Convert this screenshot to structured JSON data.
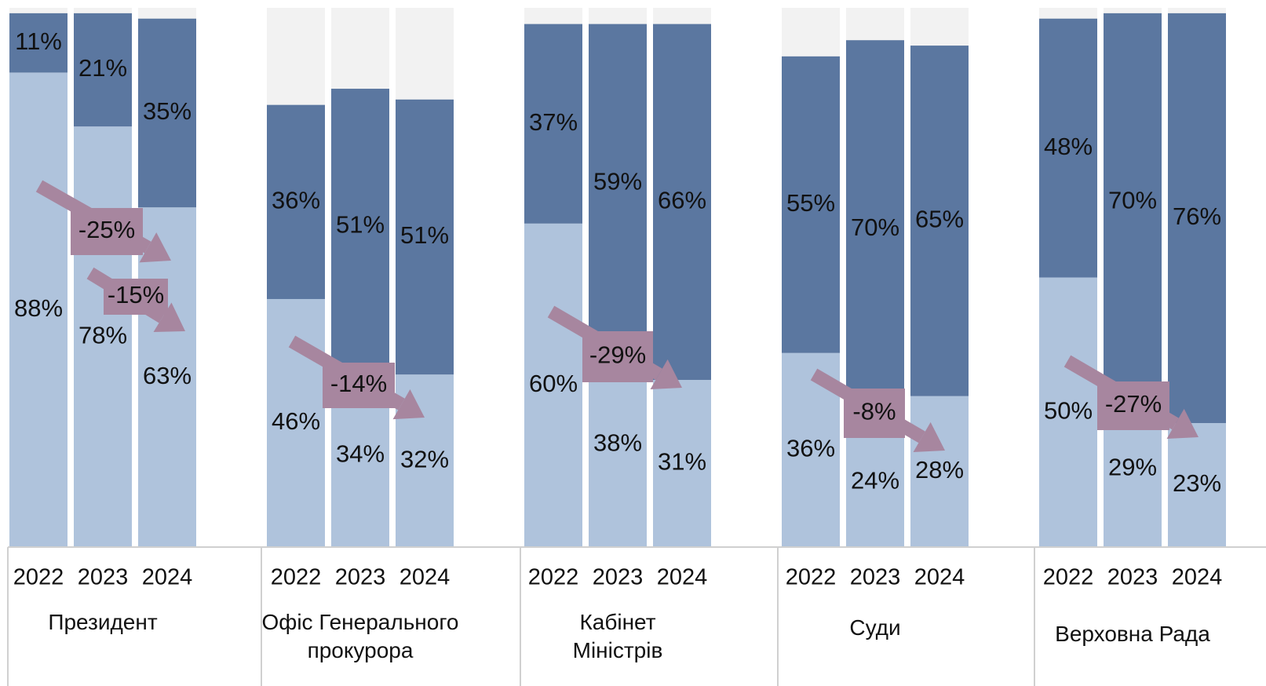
{
  "chart_data": {
    "type": "stacked_bar",
    "groups": [
      "Президент",
      "Офіс Генерального прокурора",
      "Кабінет Міністрів",
      "Суди",
      "Верховна Рада"
    ],
    "categories": [
      "2022",
      "2023",
      "2024",
      "2022",
      "2023",
      "2024",
      "2022",
      "2023",
      "2024",
      "2022",
      "2023",
      "2024",
      "2022",
      "2023",
      "2024"
    ],
    "ylim": [
      0,
      100
    ],
    "background_color": "#f2f2f2",
    "series": [
      {
        "color": "#afc3dc",
        "values": [
          88,
          78,
          63,
          46,
          34,
          32,
          60,
          38,
          31,
          36,
          24,
          28,
          50,
          29,
          23
        ],
        "value_labels": [
          "88%",
          "78%",
          "63%",
          "46%",
          "34%",
          "32%",
          "60%",
          "38%",
          "31%",
          "36%",
          "24%",
          "28%",
          "50%",
          "29%",
          "23%"
        ]
      },
      {
        "color": "#5b77a0",
        "values": [
          11,
          21,
          35,
          36,
          51,
          51,
          37,
          59,
          66,
          55,
          70,
          65,
          48,
          70,
          76
        ],
        "value_labels": [
          "11%",
          "21%",
          "35%",
          "36%",
          "51%",
          "51%",
          "37%",
          "59%",
          "66%",
          "55%",
          "70%",
          "65%",
          "48%",
          "70%",
          "76%"
        ]
      }
    ],
    "annotations": [
      {
        "label": "-25%",
        "color": "#a7869f"
      },
      {
        "label": "-15%",
        "color": "#a7869f"
      },
      {
        "label": "-14%",
        "color": "#a7869f"
      },
      {
        "label": "-29%",
        "color": "#a7869f"
      },
      {
        "label": "-8%",
        "color": "#a7869f"
      },
      {
        "label": "-27%",
        "color": "#a7869f"
      }
    ]
  }
}
